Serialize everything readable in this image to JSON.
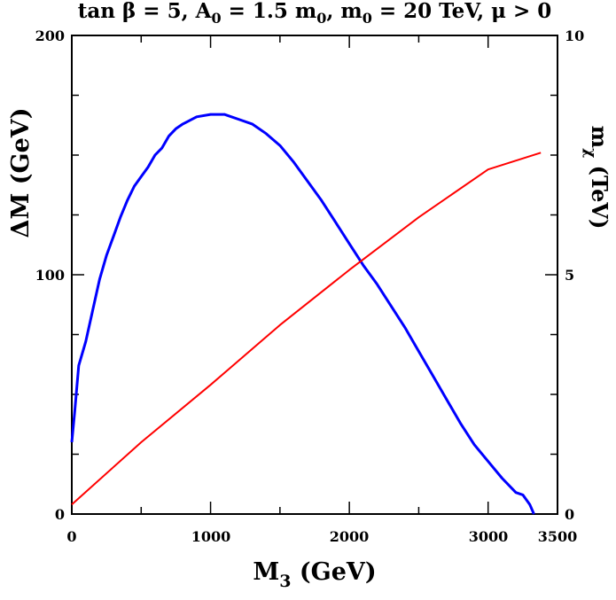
{
  "chart_data": {
    "type": "line",
    "title": {
      "main": "tan β  = 5, A",
      "sub1": "0",
      "mid1": " = 1.5 m",
      "sub2": "0",
      "mid2": ", m",
      "sub3": "0",
      "end": " = 20 TeV, μ > 0"
    },
    "xlabel": {
      "main": "M",
      "sub": "3",
      "rest": " (GeV)"
    },
    "ylabel_left": "ΔM (GeV)",
    "ylabel_right": {
      "main": "m",
      "sub": "χ",
      "rest": " (TeV)"
    },
    "xlim": [
      0,
      3500
    ],
    "ylim_left": [
      0,
      200
    ],
    "ylim_right": [
      0,
      10
    ],
    "x_ticks": [
      "0",
      "1000",
      "2000",
      "3000",
      "3500"
    ],
    "y_left_ticks": [
      "0",
      "100",
      "200"
    ],
    "y_right_ticks": [
      "0",
      "5",
      "10"
    ],
    "series": [
      {
        "axis": "left",
        "color": "#0000ff",
        "points": [
          [
            0,
            30
          ],
          [
            20,
            42
          ],
          [
            50,
            62
          ],
          [
            100,
            72
          ],
          [
            150,
            85
          ],
          [
            200,
            98
          ],
          [
            250,
            108
          ],
          [
            300,
            116
          ],
          [
            350,
            124
          ],
          [
            400,
            131
          ],
          [
            450,
            137
          ],
          [
            500,
            141
          ],
          [
            550,
            145
          ],
          [
            600,
            150
          ],
          [
            650,
            153
          ],
          [
            700,
            158
          ],
          [
            750,
            161
          ],
          [
            800,
            163
          ],
          [
            900,
            166
          ],
          [
            1000,
            167
          ],
          [
            1100,
            167
          ],
          [
            1200,
            165
          ],
          [
            1300,
            163
          ],
          [
            1400,
            159
          ],
          [
            1500,
            154
          ],
          [
            1600,
            147
          ],
          [
            1700,
            139
          ],
          [
            1800,
            131
          ],
          [
            1900,
            122
          ],
          [
            2000,
            113
          ],
          [
            2100,
            104
          ],
          [
            2200,
            96
          ],
          [
            2300,
            87
          ],
          [
            2400,
            78
          ],
          [
            2500,
            68
          ],
          [
            2600,
            58
          ],
          [
            2700,
            48
          ],
          [
            2800,
            38
          ],
          [
            2900,
            29
          ],
          [
            3000,
            22
          ],
          [
            3100,
            15
          ],
          [
            3200,
            9
          ],
          [
            3250,
            8
          ],
          [
            3300,
            4
          ],
          [
            3330,
            0
          ]
        ]
      },
      {
        "axis": "right",
        "color": "#ff0000",
        "points": [
          [
            0,
            0.2
          ],
          [
            500,
            1.5
          ],
          [
            1000,
            2.7
          ],
          [
            1500,
            3.95
          ],
          [
            2000,
            5.1
          ],
          [
            2500,
            6.2
          ],
          [
            3000,
            7.2
          ],
          [
            3380,
            7.55
          ]
        ]
      }
    ]
  }
}
